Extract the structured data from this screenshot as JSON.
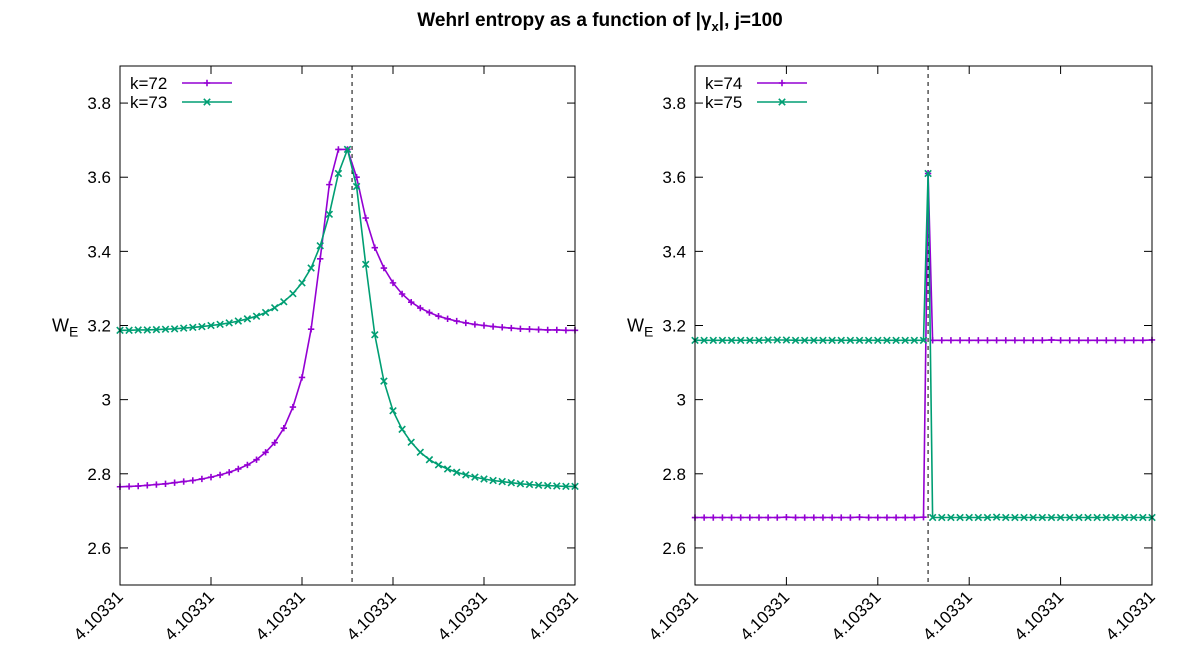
{
  "title": {
    "prefix": "Wehrl entropy as a function of |",
    "gamma": "γ",
    "sub": "x",
    "suffix": "|,  j=100"
  },
  "chart_data": [
    {
      "type": "line",
      "ylabel_main": "W",
      "ylabel_sub": "E",
      "xlabel": "",
      "xticks": [
        "4.10331",
        "4.10331",
        "4.10331",
        "4.10331",
        "4.10331",
        "4.10331"
      ],
      "xlim": [
        0,
        1
      ],
      "ylim": [
        2.5,
        3.9
      ],
      "yticks": [
        2.6,
        2.8,
        3,
        3.2,
        3.4,
        3.6,
        3.8
      ],
      "ytick_labels": [
        "2.6",
        "2.8",
        "3",
        "3.2",
        "3.4",
        "3.6",
        "3.8"
      ],
      "vline_x": 0.51,
      "legend_position": "top-left",
      "grid": false,
      "series": [
        {
          "name": "k=72",
          "color": "#9400d3",
          "marker": "plus",
          "x": [
            0.0,
            0.02,
            0.04,
            0.06,
            0.08,
            0.1,
            0.12,
            0.14,
            0.16,
            0.18,
            0.2,
            0.22,
            0.24,
            0.26,
            0.28,
            0.3,
            0.32,
            0.34,
            0.36,
            0.38,
            0.4,
            0.42,
            0.44,
            0.46,
            0.48,
            0.5,
            0.52,
            0.54,
            0.56,
            0.58,
            0.6,
            0.62,
            0.64,
            0.66,
            0.68,
            0.7,
            0.72,
            0.74,
            0.76,
            0.78,
            0.8,
            0.82,
            0.84,
            0.86,
            0.88,
            0.9,
            0.92,
            0.94,
            0.96,
            0.98,
            1.0
          ],
          "values": [
            2.765,
            2.766,
            2.767,
            2.769,
            2.771,
            2.773,
            2.776,
            2.779,
            2.782,
            2.786,
            2.791,
            2.797,
            2.804,
            2.813,
            2.824,
            2.838,
            2.858,
            2.884,
            2.923,
            2.98,
            3.06,
            3.19,
            3.38,
            3.58,
            3.675,
            3.675,
            3.6,
            3.49,
            3.41,
            3.355,
            3.315,
            3.285,
            3.263,
            3.247,
            3.235,
            3.225,
            3.218,
            3.212,
            3.207,
            3.203,
            3.2,
            3.197,
            3.195,
            3.193,
            3.191,
            3.19,
            3.189,
            3.188,
            3.188,
            3.187,
            3.187
          ]
        },
        {
          "name": "k=73",
          "color": "#009e73",
          "marker": "cross",
          "x": [
            0.0,
            0.02,
            0.04,
            0.06,
            0.08,
            0.1,
            0.12,
            0.14,
            0.16,
            0.18,
            0.2,
            0.22,
            0.24,
            0.26,
            0.28,
            0.3,
            0.32,
            0.34,
            0.36,
            0.38,
            0.4,
            0.42,
            0.44,
            0.46,
            0.48,
            0.5,
            0.52,
            0.54,
            0.56,
            0.58,
            0.6,
            0.62,
            0.64,
            0.66,
            0.68,
            0.7,
            0.72,
            0.74,
            0.76,
            0.78,
            0.8,
            0.82,
            0.84,
            0.86,
            0.88,
            0.9,
            0.92,
            0.94,
            0.96,
            0.98,
            1.0
          ],
          "values": [
            3.187,
            3.187,
            3.188,
            3.188,
            3.189,
            3.19,
            3.191,
            3.193,
            3.195,
            3.197,
            3.2,
            3.203,
            3.207,
            3.212,
            3.218,
            3.225,
            3.235,
            3.248,
            3.264,
            3.286,
            3.315,
            3.355,
            3.415,
            3.5,
            3.61,
            3.675,
            3.575,
            3.365,
            3.175,
            3.05,
            2.97,
            2.92,
            2.885,
            2.858,
            2.838,
            2.824,
            2.813,
            2.804,
            2.797,
            2.791,
            2.786,
            2.782,
            2.779,
            2.776,
            2.773,
            2.771,
            2.769,
            2.768,
            2.767,
            2.766,
            2.766
          ]
        }
      ]
    },
    {
      "type": "line",
      "ylabel_main": "W",
      "ylabel_sub": "E",
      "xlabel": "",
      "xticks": [
        "4.10331",
        "4.10331",
        "4.10331",
        "4.10331",
        "4.10331",
        "4.10331"
      ],
      "xlim": [
        0,
        1
      ],
      "ylim": [
        2.5,
        3.9
      ],
      "yticks": [
        2.6,
        2.8,
        3,
        3.2,
        3.4,
        3.6,
        3.8
      ],
      "ytick_labels": [
        "2.6",
        "2.8",
        "3",
        "3.2",
        "3.4",
        "3.6",
        "3.8"
      ],
      "vline_x": 0.51,
      "legend_position": "top-left",
      "grid": false,
      "series": [
        {
          "name": "k=74",
          "color": "#9400d3",
          "marker": "plus",
          "x": [
            0.0,
            0.02,
            0.04,
            0.06,
            0.08,
            0.1,
            0.12,
            0.14,
            0.16,
            0.18,
            0.2,
            0.22,
            0.24,
            0.26,
            0.28,
            0.3,
            0.32,
            0.34,
            0.36,
            0.38,
            0.4,
            0.42,
            0.44,
            0.46,
            0.48,
            0.5,
            0.51,
            0.52,
            0.54,
            0.56,
            0.58,
            0.6,
            0.62,
            0.64,
            0.66,
            0.68,
            0.7,
            0.72,
            0.74,
            0.76,
            0.78,
            0.8,
            0.82,
            0.84,
            0.86,
            0.88,
            0.9,
            0.92,
            0.94,
            0.96,
            0.98,
            1.0
          ],
          "values": [
            2.682,
            2.682,
            2.682,
            2.682,
            2.682,
            2.682,
            2.682,
            2.682,
            2.682,
            2.682,
            2.683,
            2.682,
            2.682,
            2.682,
            2.682,
            2.682,
            2.682,
            2.682,
            2.683,
            2.682,
            2.682,
            2.682,
            2.682,
            2.682,
            2.682,
            2.683,
            3.61,
            3.16,
            3.16,
            3.16,
            3.16,
            3.16,
            3.16,
            3.16,
            3.16,
            3.16,
            3.16,
            3.16,
            3.16,
            3.16,
            3.161,
            3.16,
            3.16,
            3.16,
            3.16,
            3.16,
            3.16,
            3.16,
            3.16,
            3.16,
            3.16,
            3.161
          ]
        },
        {
          "name": "k=75",
          "color": "#009e73",
          "marker": "cross",
          "x": [
            0.0,
            0.02,
            0.04,
            0.06,
            0.08,
            0.1,
            0.12,
            0.14,
            0.16,
            0.18,
            0.2,
            0.22,
            0.24,
            0.26,
            0.28,
            0.3,
            0.32,
            0.34,
            0.36,
            0.38,
            0.4,
            0.42,
            0.44,
            0.46,
            0.48,
            0.5,
            0.51,
            0.52,
            0.54,
            0.56,
            0.58,
            0.6,
            0.62,
            0.64,
            0.66,
            0.68,
            0.7,
            0.72,
            0.74,
            0.76,
            0.78,
            0.8,
            0.82,
            0.84,
            0.86,
            0.88,
            0.9,
            0.92,
            0.94,
            0.96,
            0.98,
            1.0
          ],
          "values": [
            3.16,
            3.16,
            3.16,
            3.16,
            3.16,
            3.16,
            3.16,
            3.16,
            3.161,
            3.161,
            3.161,
            3.16,
            3.16,
            3.16,
            3.16,
            3.16,
            3.16,
            3.16,
            3.16,
            3.16,
            3.16,
            3.16,
            3.16,
            3.16,
            3.16,
            3.16,
            3.61,
            2.682,
            2.682,
            2.682,
            2.682,
            2.682,
            2.682,
            2.682,
            2.683,
            2.682,
            2.682,
            2.682,
            2.682,
            2.682,
            2.682,
            2.682,
            2.682,
            2.682,
            2.682,
            2.682,
            2.682,
            2.682,
            2.682,
            2.682,
            2.682,
            2.682
          ]
        }
      ]
    }
  ]
}
